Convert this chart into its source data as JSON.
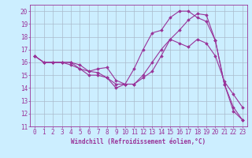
{
  "xlabel": "Windchill (Refroidissement éolien,°C)",
  "bg_color": "#cceeff",
  "line_color": "#993399",
  "grid_color": "#aabbcc",
  "xmin": -0.5,
  "xmax": 23.5,
  "ymin": 11,
  "ymax": 20.5,
  "yticks": [
    11,
    12,
    13,
    14,
    15,
    16,
    17,
    18,
    19,
    20
  ],
  "xticks": [
    0,
    1,
    2,
    3,
    4,
    5,
    6,
    7,
    8,
    9,
    10,
    11,
    12,
    13,
    14,
    15,
    16,
    17,
    18,
    19,
    20,
    21,
    22,
    23
  ],
  "x": [
    0,
    1,
    2,
    3,
    4,
    5,
    6,
    7,
    8,
    9,
    10,
    11,
    12,
    13,
    14,
    15,
    16,
    17,
    18,
    19,
    20,
    21,
    22,
    23
  ],
  "series1": [
    16.5,
    16.0,
    16.0,
    16.0,
    16.0,
    15.8,
    15.3,
    15.2,
    14.8,
    14.0,
    14.3,
    15.5,
    17.0,
    18.3,
    18.5,
    19.5,
    20.0,
    20.0,
    19.5,
    19.2,
    17.7,
    14.3,
    12.5,
    11.5
  ],
  "series2": [
    16.5,
    16.0,
    16.0,
    16.0,
    15.8,
    15.5,
    15.3,
    15.5,
    15.6,
    14.6,
    14.3,
    14.3,
    15.0,
    16.0,
    17.0,
    17.8,
    17.5,
    17.2,
    17.8,
    17.5,
    16.5,
    14.5,
    13.5,
    12.5
  ],
  "series3": [
    16.5,
    16.0,
    16.0,
    16.0,
    16.0,
    15.5,
    15.0,
    15.0,
    14.8,
    14.3,
    14.3,
    14.3,
    14.8,
    15.3,
    16.5,
    17.8,
    18.5,
    19.3,
    19.8,
    19.7,
    17.7,
    14.3,
    12.2,
    11.5
  ],
  "tick_fontsize": 5.5,
  "label_fontsize": 5.5
}
